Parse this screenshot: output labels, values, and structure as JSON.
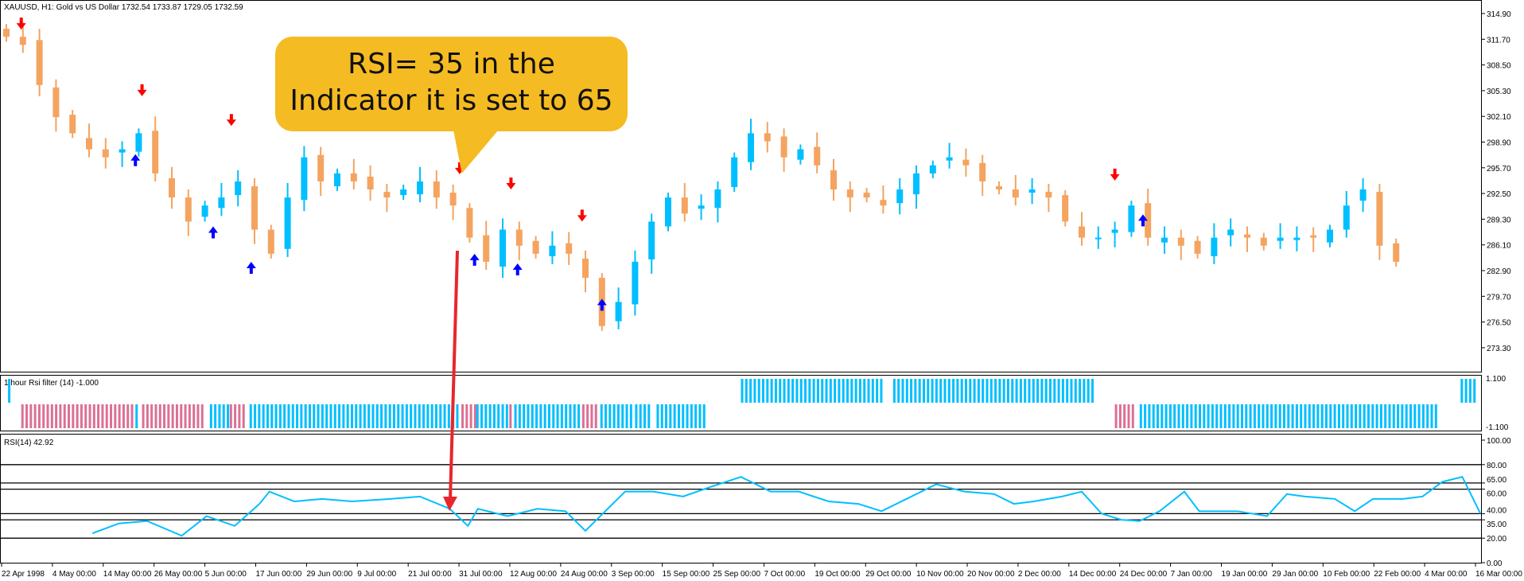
{
  "header": {
    "symbol_line": "XAUUSD, H1:  Gold vs US Dollar  1732.54 1733.87 1729.05 1732.59"
  },
  "colors": {
    "bull": "#00bfff",
    "bear": "#f4a460",
    "down_arrow": "#ff0000",
    "up_arrow": "#0000ff",
    "hist_bear": "#db7093",
    "hist_bull": "#00bfff",
    "rsi": "#00bfff",
    "callout": "#f5bb22",
    "pointer": "#e8262b"
  },
  "price_axis": {
    "labels": [
      "314.90",
      "311.70",
      "308.50",
      "305.30",
      "302.10",
      "298.90",
      "295.70",
      "292.50",
      "289.30",
      "286.10",
      "282.90",
      "279.70",
      "276.50",
      "273.30"
    ]
  },
  "chart_data": {
    "type": "candlestick",
    "closes": [
      312,
      311,
      306,
      302,
      300,
      298,
      297,
      298,
      300,
      295,
      292,
      289,
      291,
      292,
      294,
      288,
      285,
      292,
      297,
      294,
      295,
      294,
      293,
      292,
      293,
      294,
      292,
      291,
      287,
      284,
      288,
      286,
      285,
      286,
      285,
      282,
      276,
      279,
      284,
      289,
      292,
      290,
      291,
      293,
      297,
      300,
      299,
      297,
      298,
      296,
      293,
      292,
      292,
      291,
      293,
      295,
      296,
      297,
      296,
      294,
      293,
      292,
      293,
      292,
      289,
      287,
      287,
      288,
      291,
      287,
      287,
      286,
      285,
      287,
      288,
      287,
      286,
      287,
      287,
      287,
      288,
      291,
      293,
      286,
      284
    ],
    "down_arrows": [
      [
        0.9,
        313.5
      ],
      [
        8.2,
        305.2
      ],
      [
        13.6,
        301.5
      ],
      [
        27.4,
        295.5
      ],
      [
        30.5,
        293.6
      ],
      [
        34.8,
        289.6
      ],
      [
        67,
        294.7
      ]
    ],
    "up_arrows": [
      [
        7.8,
        296.8
      ],
      [
        12.5,
        287.8
      ],
      [
        14.8,
        283.4
      ],
      [
        28.3,
        284.4
      ],
      [
        30.9,
        283.2
      ],
      [
        36,
        278.8
      ],
      [
        68.7,
        289.3
      ]
    ],
    "price_range": [
      271.7,
      316.5
    ]
  },
  "filter_panel": {
    "label": "1 hour Rsi filter (14) -1.000",
    "axis": [
      "1.100",
      "-1.100"
    ],
    "segments": [
      {
        "from": 0.1,
        "to": 0.2,
        "value": 1,
        "color": "bull"
      },
      {
        "from": 0.9,
        "to": 7.6,
        "value": -1,
        "color": "bear"
      },
      {
        "from": 7.8,
        "to": 8.0,
        "value": -1,
        "color": "bull"
      },
      {
        "from": 8.2,
        "to": 12.0,
        "value": -1,
        "color": "bear"
      },
      {
        "from": 12.3,
        "to": 13.4,
        "value": -1,
        "color": "bull"
      },
      {
        "from": 13.5,
        "to": 14.4,
        "value": -1,
        "color": "bear"
      },
      {
        "from": 14.7,
        "to": 27.4,
        "value": -1,
        "color": "bull"
      },
      {
        "from": 27.5,
        "to": 28.3,
        "value": -1,
        "color": "bear"
      },
      {
        "from": 28.4,
        "to": 30.3,
        "value": -1,
        "color": "bull"
      },
      {
        "from": 30.4,
        "to": 30.6,
        "value": -1,
        "color": "bear"
      },
      {
        "from": 30.7,
        "to": 34.7,
        "value": -1,
        "color": "bull"
      },
      {
        "from": 34.8,
        "to": 35.6,
        "value": -1,
        "color": "bear"
      },
      {
        "from": 35.9,
        "to": 37.8,
        "value": -1,
        "color": "bull"
      },
      {
        "from": 38.0,
        "to": 39.0,
        "value": -1,
        "color": "bull"
      },
      {
        "from": 39.3,
        "to": 42.2,
        "value": -1,
        "color": "bull"
      },
      {
        "from": 44.4,
        "to": 52.9,
        "value": 1,
        "color": "bull"
      },
      {
        "from": 53.6,
        "to": 65.8,
        "value": 1,
        "color": "bull"
      },
      {
        "from": 67.0,
        "to": 68.2,
        "value": -1,
        "color": "bear"
      },
      {
        "from": 68.5,
        "to": 86.5,
        "value": -1,
        "color": "bull"
      },
      {
        "from": 87.9,
        "to": 88.9,
        "value": 1,
        "color": "bull"
      }
    ]
  },
  "rsi_panel": {
    "label": "RSI(14) 42.92",
    "levels": [
      80,
      65,
      60,
      40,
      35,
      20
    ],
    "axis": [
      "100.00",
      "80.00",
      "65.00",
      "60.00",
      "40.00",
      "35.00",
      "20.00",
      "0.00"
    ],
    "points": [
      [
        5.2,
        24
      ],
      [
        6.8,
        32
      ],
      [
        8.5,
        34
      ],
      [
        10.6,
        22
      ],
      [
        12.1,
        38
      ],
      [
        13.8,
        30
      ],
      [
        15.3,
        48
      ],
      [
        15.9,
        58
      ],
      [
        17.4,
        50
      ],
      [
        19.1,
        52
      ],
      [
        20.9,
        50
      ],
      [
        23.2,
        52
      ],
      [
        25,
        54
      ],
      [
        26.8,
        44
      ],
      [
        27.9,
        30
      ],
      [
        28.5,
        44
      ],
      [
        30.3,
        38
      ],
      [
        32.1,
        44
      ],
      [
        33.8,
        42
      ],
      [
        35,
        26
      ],
      [
        36.2,
        42
      ],
      [
        37.4,
        58
      ],
      [
        39.1,
        58
      ],
      [
        40.9,
        54
      ],
      [
        42.6,
        62
      ],
      [
        44.4,
        70
      ],
      [
        46.2,
        58
      ],
      [
        47.9,
        58
      ],
      [
        49.7,
        50
      ],
      [
        51.5,
        48
      ],
      [
        52.9,
        42
      ],
      [
        54.4,
        52
      ],
      [
        56.2,
        64
      ],
      [
        57.9,
        58
      ],
      [
        59.7,
        56
      ],
      [
        60.9,
        48
      ],
      [
        62.1,
        50
      ],
      [
        63.8,
        54
      ],
      [
        65,
        58
      ],
      [
        66.2,
        40
      ],
      [
        67.4,
        35
      ],
      [
        68.5,
        34
      ],
      [
        69.7,
        42
      ],
      [
        71.2,
        58
      ],
      [
        72.1,
        42
      ],
      [
        74.4,
        42
      ],
      [
        76.2,
        38
      ],
      [
        77.4,
        56
      ],
      [
        78.5,
        54
      ],
      [
        80.3,
        52
      ],
      [
        81.5,
        42
      ],
      [
        82.6,
        52
      ],
      [
        84.4,
        52
      ],
      [
        85.6,
        54
      ],
      [
        86.8,
        66
      ],
      [
        88,
        70
      ],
      [
        89.1,
        40
      ]
    ]
  },
  "time_axis": {
    "labels": [
      "22 Apr 1998",
      "4 May 00:00",
      "14 May 00:00",
      "26 May 00:00",
      "5 Jun 00:00",
      "17 Jun 00:00",
      "29 Jun 00:00",
      "9 Jul 00:00",
      "21 Jul 00:00",
      "31 Jul 00:00",
      "12 Aug 00:00",
      "24 Aug 00:00",
      "3 Sep 00:00",
      "15 Sep 00:00",
      "25 Sep 00:00",
      "7 Oct 00:00",
      "19 Oct 00:00",
      "29 Oct 00:00",
      "10 Nov 00:00",
      "20 Nov 00:00",
      "2 Dec 00:00",
      "14 Dec 00:00",
      "24 Dec 00:00",
      "7 Jan 00:00",
      "19 Jan 00:00",
      "29 Jan 00:00",
      "10 Feb 00:00",
      "22 Feb 00:00",
      "4 Mar 00:00",
      "16 Mar 00:00"
    ]
  },
  "callout": {
    "line1": "RSI= 35 in the",
    "line2": "Indicator it is set to 65"
  }
}
